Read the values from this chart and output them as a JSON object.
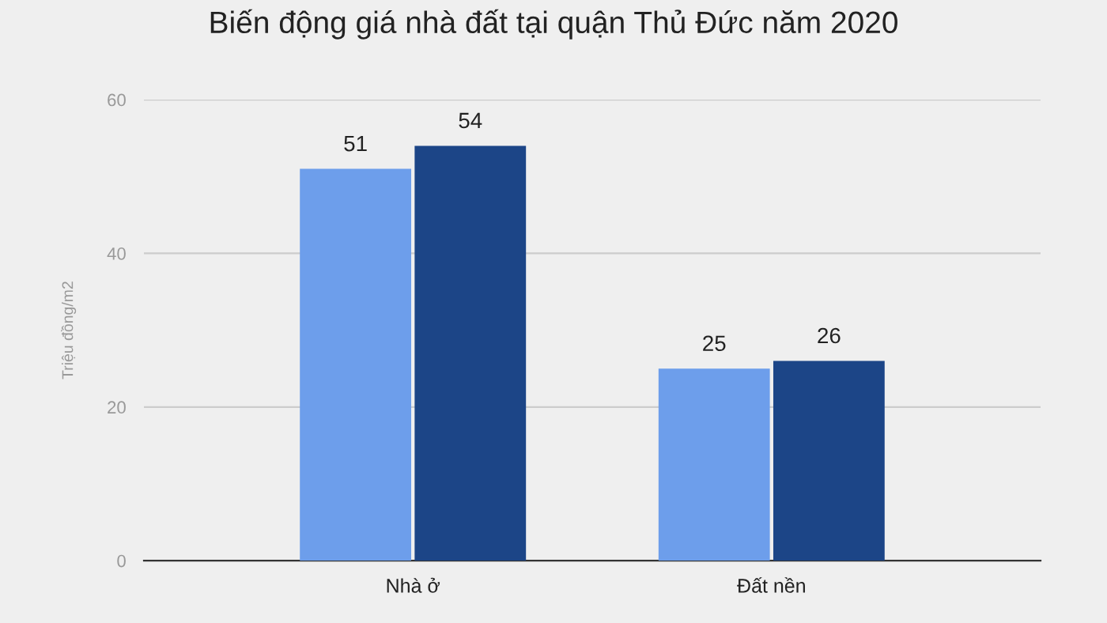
{
  "chart_data": {
    "type": "bar",
    "title": "Biến động giá nhà đất tại quận Thủ Đức năm 2020",
    "ylabel": "Triệu đồng/m2",
    "categories": [
      "Nhà ở",
      "Đất nền"
    ],
    "series": [
      {
        "color": "#6d9eeb",
        "values": [
          51,
          25
        ]
      },
      {
        "color": "#1c4587",
        "values": [
          54,
          26
        ]
      }
    ],
    "ylim": [
      0,
      60
    ],
    "yticks": [
      0,
      20,
      40,
      60
    ],
    "grid": "y",
    "data_labels": true
  }
}
